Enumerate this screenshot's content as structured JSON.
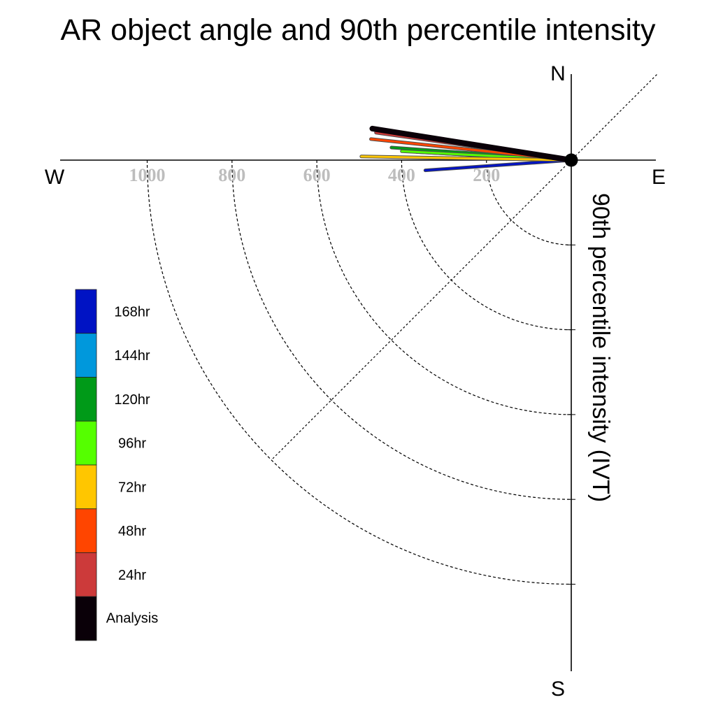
{
  "chart_data": {
    "type": "polar-line",
    "title": "AR object angle and 90th percentile intensity",
    "radial_label": "90th percentile intensity (IVT)",
    "compass": {
      "north": "N",
      "south": "S",
      "east": "E",
      "west": "W"
    },
    "radial_ticks": [
      200,
      400,
      600,
      800,
      1000
    ],
    "radial_max": 1200,
    "series": [
      {
        "name": "Analysis",
        "color": "#0a0008",
        "angle_deg": 171,
        "intensity": 475
      },
      {
        "name": "24hr",
        "color": "#cc3a3a",
        "angle_deg": 172,
        "intensity": 465
      },
      {
        "name": "48hr",
        "color": "#ff4500",
        "angle_deg": 174,
        "intensity": 475
      },
      {
        "name": "72hr",
        "color": "#ffc600",
        "angle_deg": 179,
        "intensity": 495
      },
      {
        "name": "96hr",
        "color": "#55ff00",
        "angle_deg": 177,
        "intensity": 400
      },
      {
        "name": "120hr",
        "color": "#009a18",
        "angle_deg": 176,
        "intensity": 425
      },
      {
        "name": "144hr",
        "color": "#0098dc",
        "angle_deg": 177,
        "intensity": 365
      },
      {
        "name": "168hr",
        "color": "#0013c4",
        "angle_deg": 184,
        "intensity": 345
      }
    ],
    "legend_order": [
      "168hr",
      "144hr",
      "120hr",
      "96hr",
      "72hr",
      "48hr",
      "24hr",
      "Analysis"
    ]
  }
}
